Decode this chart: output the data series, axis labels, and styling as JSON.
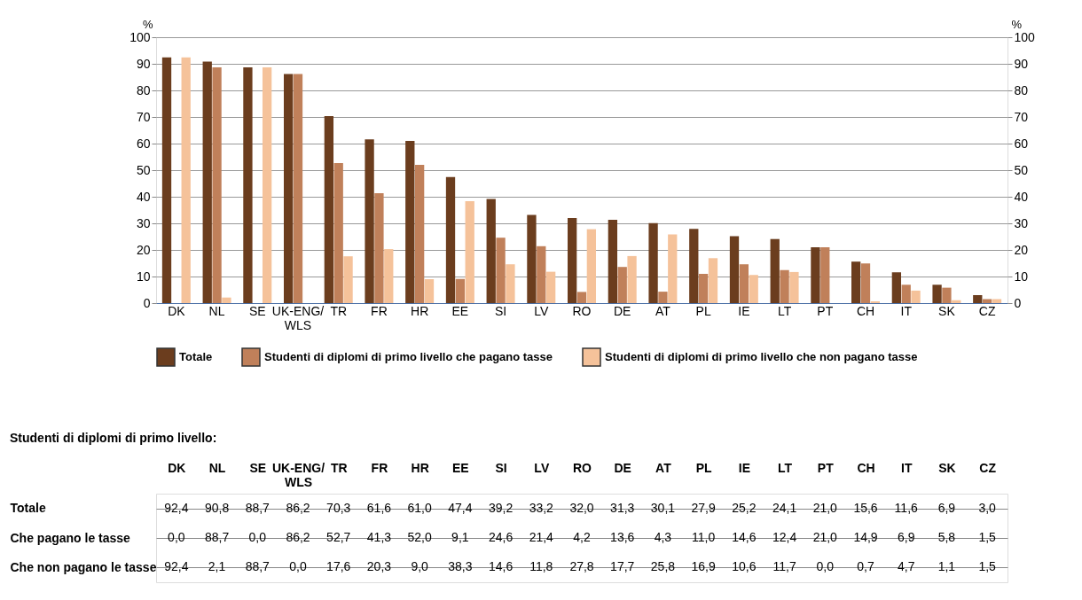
{
  "chart_data": {
    "type": "bar",
    "categories": [
      "DK",
      "NL",
      "SE",
      "UK-ENG/WLS",
      "TR",
      "FR",
      "HR",
      "EE",
      "SI",
      "LV",
      "RO",
      "DE",
      "AT",
      "PL",
      "IE",
      "LT",
      "PT",
      "CH",
      "IT",
      "SK",
      "CZ"
    ],
    "series": [
      {
        "name": "Totale",
        "color": "#6b3d1e",
        "values": [
          92.4,
          90.8,
          88.7,
          86.2,
          70.3,
          61.6,
          61.0,
          47.4,
          39.2,
          33.2,
          32.0,
          31.3,
          30.1,
          27.9,
          25.2,
          24.1,
          21.0,
          15.6,
          11.6,
          6.9,
          3.0
        ],
        "value_labels": [
          "92,4",
          "90,8",
          "88,7",
          "86,2",
          "70,3",
          "61,6",
          "61,0",
          "47,4",
          "39,2",
          "33,2",
          "32,0",
          "31,3",
          "30,1",
          "27,9",
          "25,2",
          "24,1",
          "21,0",
          "15,6",
          "11,6",
          "6,9",
          "3,0"
        ]
      },
      {
        "name": "Studenti di diplomi di primo livello che pagano tasse",
        "color": "#c0805a",
        "values": [
          0.0,
          88.7,
          0.0,
          86.2,
          52.7,
          41.3,
          52.0,
          9.1,
          24.6,
          21.4,
          4.2,
          13.6,
          4.3,
          11.0,
          14.6,
          12.4,
          21.0,
          14.9,
          6.9,
          5.8,
          1.5
        ],
        "value_labels": [
          "0,0",
          "88,7",
          "0,0",
          "86,2",
          "52,7",
          "41,3",
          "52,0",
          "9,1",
          "24,6",
          "21,4",
          "4,2",
          "13,6",
          "4,3",
          "11,0",
          "14,6",
          "12,4",
          "21,0",
          "14,9",
          "6,9",
          "5,8",
          "1,5"
        ]
      },
      {
        "name": "Studenti di diplomi di primo livello che non pagano tasse",
        "color": "#f5c29a",
        "values": [
          92.4,
          2.1,
          88.7,
          0.0,
          17.6,
          20.3,
          9.0,
          38.3,
          14.6,
          11.8,
          27.8,
          17.7,
          25.8,
          16.9,
          10.6,
          11.7,
          0.0,
          0.7,
          4.7,
          1.1,
          1.5
        ],
        "value_labels": [
          "92,4",
          "2,1",
          "88,7",
          "0,0",
          "17,6",
          "20,3",
          "9,0",
          "38,3",
          "14,6",
          "11,8",
          "27,8",
          "17,7",
          "25,8",
          "16,9",
          "10,6",
          "11,7",
          "0,0",
          "0,7",
          "4,7",
          "1,1",
          "1,5"
        ]
      }
    ],
    "ylabel": "%",
    "y2label": "%",
    "ylim": [
      0,
      100
    ],
    "yticks": [
      0,
      10,
      20,
      30,
      40,
      50,
      60,
      70,
      80,
      90,
      100
    ],
    "y2lim": [
      0,
      100
    ],
    "y2ticks": [
      0,
      10,
      20,
      30,
      40,
      50,
      60,
      70,
      80,
      90,
      100
    ],
    "grid": "y",
    "legend": "bottom",
    "annotations": [
      "Studenti di diplomi di primo livello:",
      "Totale",
      "Che pagano le tasse",
      "Che non pagano le tasse"
    ]
  }
}
